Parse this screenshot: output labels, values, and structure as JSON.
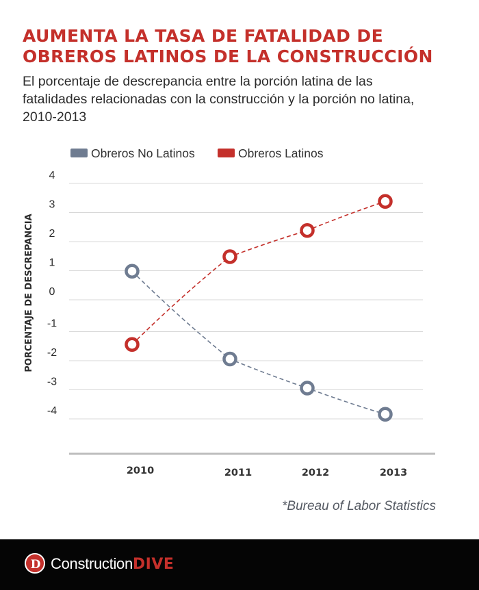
{
  "title": "AUMENTA LA TASA DE FATALIDAD DE OBREROS LATINOS DE LA CONSTRUCCIÓN",
  "subtitle": "El porcentaje de descrepancia entre la porción latina de las fatalidades relacionadas con la construcción y la porción no latina, 2010-2013",
  "source": "*Bureau of Labor Statistics",
  "brand": {
    "name_part1": "Construction",
    "name_part2": "DIVE",
    "mark_letter": "D",
    "color": "#c4302b"
  },
  "colors": {
    "accent": "#c4302b",
    "slate": "#6f7c91",
    "grid": "#d8d8d8",
    "axis": "#bdbdbd",
    "footer": "#050505"
  },
  "chart_data": {
    "type": "line",
    "categories": [
      "2010",
      "2011",
      "2012",
      "2013"
    ],
    "ylabel": "PORCENTAJE DE DESCREPANCIA",
    "xlabel": "",
    "yticks": [
      4,
      3,
      2,
      1,
      0,
      -1,
      -2,
      -3,
      -4
    ],
    "ytick_labels": [
      "4",
      "3",
      "2",
      "1",
      "0",
      "-1",
      "-2",
      "-3",
      "-4"
    ],
    "ylim": [
      -5,
      4
    ],
    "grid": true,
    "legend_position": "top-left",
    "series": [
      {
        "name": "Obreros No Latinos",
        "color": "#6f7c91",
        "line_style": "dashed",
        "values": [
          1.1,
          -1.8,
          -2.8,
          -3.7
        ]
      },
      {
        "name": "Obreros Latinos",
        "color": "#c4302b",
        "line_style": "dashed",
        "values": [
          -1.3,
          1.6,
          2.5,
          3.5
        ]
      }
    ]
  }
}
